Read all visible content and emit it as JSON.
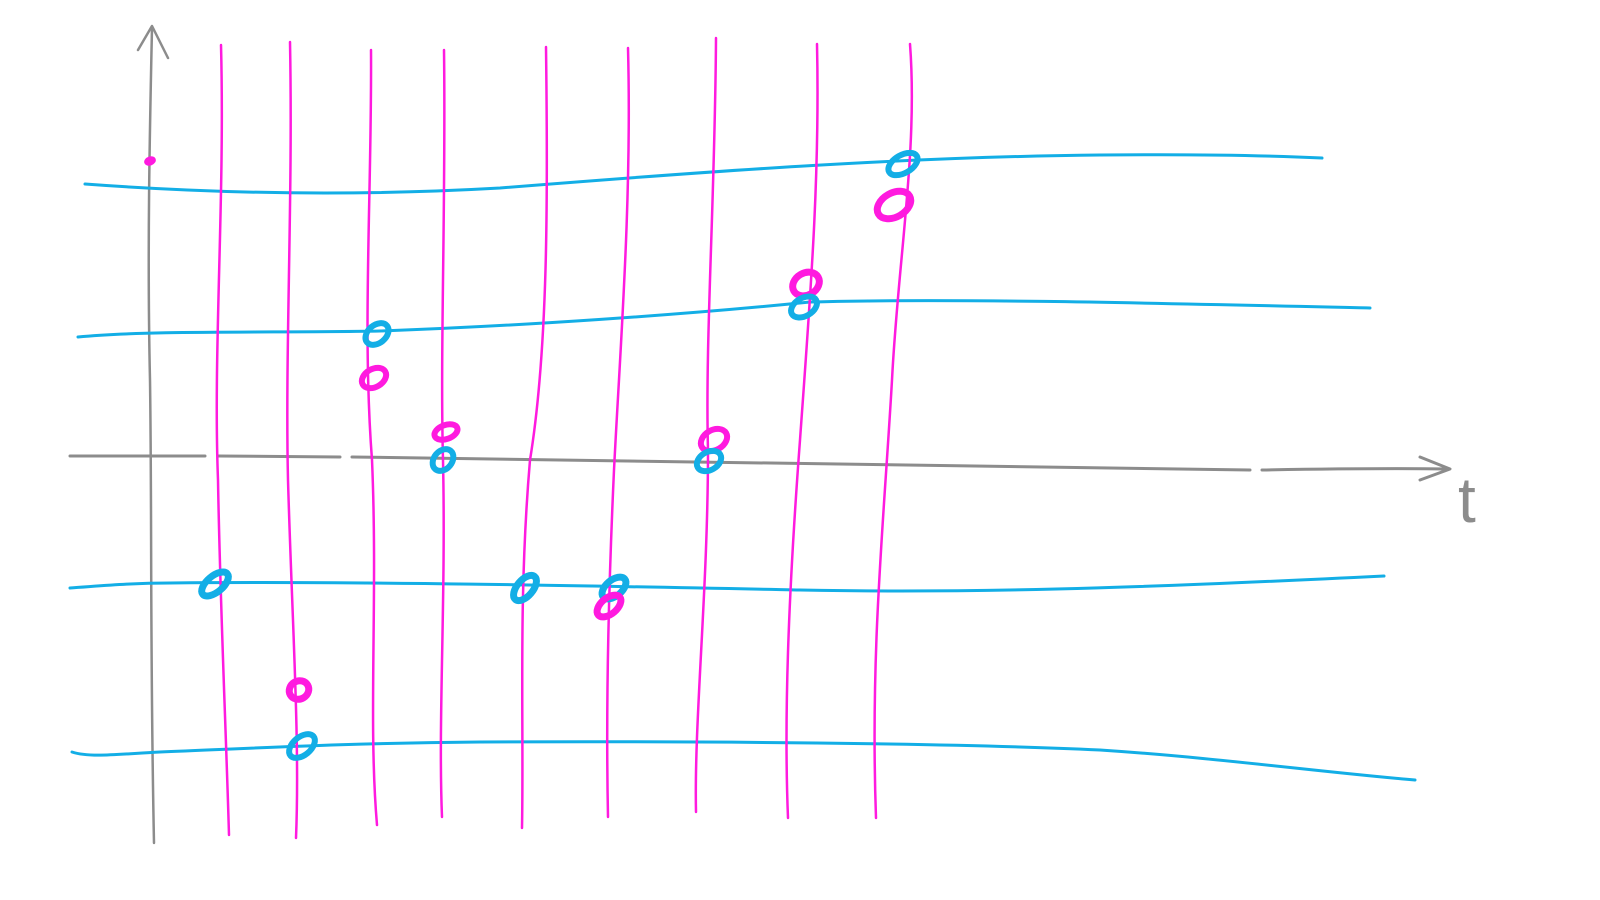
{
  "diagram": {
    "axis": {
      "t_label": "t",
      "color": "#8c8c8c"
    },
    "colors": {
      "vertical_lines": "#ff1adf",
      "horizontal_lines": "#13aee6",
      "axes": "#8c8c8c",
      "dot_magenta": "#ff1adf",
      "dot_cyan": "#13aee6"
    },
    "counts": {
      "vertical_lines": 10,
      "horizontal_lines": 4
    },
    "dots": [
      {
        "color": "magenta",
        "vertical_line": 0,
        "level": "above-top"
      },
      {
        "color": "cyan",
        "vertical_line": 9,
        "horizontal_line": 1
      },
      {
        "color": "magenta",
        "vertical_line": 9,
        "horizontal_line": 1,
        "offset": "below"
      },
      {
        "color": "magenta",
        "vertical_line": 8,
        "horizontal_line": 2,
        "offset": "above"
      },
      {
        "color": "cyan",
        "vertical_line": 8,
        "horizontal_line": 2
      },
      {
        "color": "cyan",
        "vertical_line": 3,
        "horizontal_line": 2
      },
      {
        "color": "magenta",
        "vertical_line": 3,
        "horizontal_line": 2,
        "offset": "below"
      },
      {
        "color": "magenta",
        "vertical_line": 4,
        "level": "time-axis",
        "offset": "above"
      },
      {
        "color": "cyan",
        "vertical_line": 4,
        "level": "time-axis"
      },
      {
        "color": "magenta",
        "vertical_line": 7,
        "level": "time-axis",
        "offset": "above"
      },
      {
        "color": "cyan",
        "vertical_line": 7,
        "level": "time-axis"
      },
      {
        "color": "cyan",
        "vertical_line": 1,
        "horizontal_line": 3
      },
      {
        "color": "cyan",
        "vertical_line": 5,
        "horizontal_line": 3
      },
      {
        "color": "cyan",
        "vertical_line": 6,
        "horizontal_line": 3
      },
      {
        "color": "magenta",
        "vertical_line": 6,
        "horizontal_line": 3,
        "offset": "below"
      },
      {
        "color": "magenta",
        "vertical_line": 2,
        "horizontal_line": 4,
        "offset": "above"
      },
      {
        "color": "cyan",
        "vertical_line": 2,
        "horizontal_line": 4
      }
    ]
  }
}
